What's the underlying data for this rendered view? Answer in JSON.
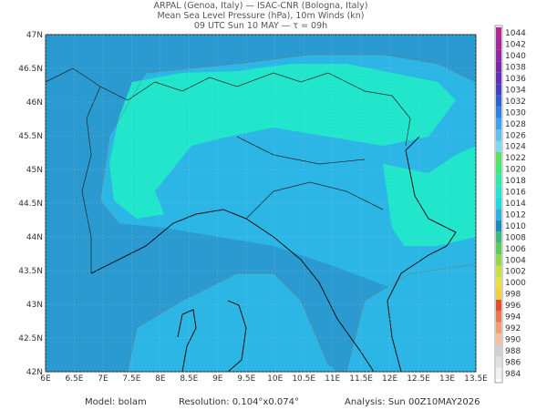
{
  "header": {
    "line1": "ARPAL (Genoa, Italy)  —  ISAC-CNR (Bologna, Italy)",
    "line2": "Mean Sea Level Pressure (hPa), 10m Winds (kn)",
    "line3": "09 UTC Sun 10 MAY  —  τ = 09h"
  },
  "map": {
    "lon_ticks": [
      "6E",
      "6.5E",
      "7E",
      "7.5E",
      "8E",
      "8.5E",
      "9E",
      "9.5E",
      "10E",
      "10.5E",
      "11E",
      "11.5E",
      "12E",
      "12.5E",
      "13E",
      "13.5E"
    ],
    "lat_ticks": [
      "42N",
      "42.5N",
      "43N",
      "43.5N",
      "44N",
      "44.5N",
      "45N",
      "45.5N",
      "46N",
      "46.5N",
      "47N"
    ]
  },
  "colorbar": {
    "labels": [
      984,
      986,
      988,
      990,
      992,
      994,
      996,
      998,
      1000,
      1002,
      1004,
      1006,
      1008,
      1010,
      1012,
      1014,
      1016,
      1018,
      1020,
      1022,
      1024,
      1026,
      1028,
      1030,
      1032,
      1034,
      1036,
      1038,
      1040,
      1042,
      1044
    ]
  },
  "footer": {
    "model": "Model: bolam",
    "resolution": "Resolution: 0.104°x0.074°",
    "analysis": "Analysis: Sun 00Z10MAY2026"
  }
}
